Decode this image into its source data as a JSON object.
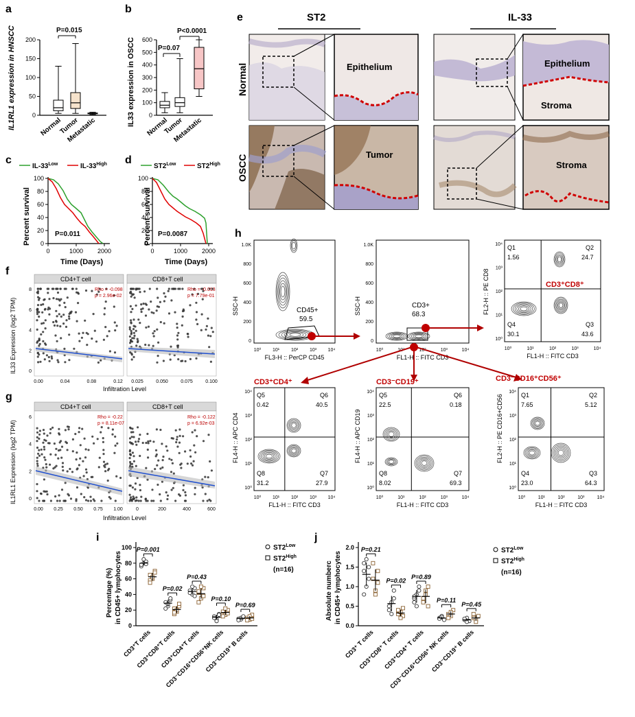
{
  "panels": {
    "a": {
      "letter": "a",
      "ylabel": "IL1RL1 expression in HNSCC",
      "pval": "P=0.015",
      "yticks": [
        "0",
        "50",
        "100",
        "150",
        "200"
      ],
      "ylim": [
        0,
        200
      ],
      "groups": [
        {
          "name": "Normal",
          "min": 5,
          "q1": 12,
          "med": 20,
          "q3": 40,
          "max": 130
        },
        {
          "name": "Tumor",
          "min": 5,
          "q1": 18,
          "med": 33,
          "q3": 60,
          "max": 190
        },
        {
          "name": "Metastatic",
          "min": 2,
          "q1": 4,
          "med": 5,
          "q3": 6,
          "max": 8
        }
      ]
    },
    "b": {
      "letter": "b",
      "ylabel": "IL33 expression in OSCC",
      "pval1": "P=0.07",
      "pval2": "P<0.0001",
      "yticks": [
        "0",
        "100",
        "200",
        "300",
        "400",
        "500",
        "600"
      ],
      "ylim": [
        0,
        600
      ],
      "groups": [
        {
          "name": "Normal",
          "min": 20,
          "q1": 60,
          "med": 80,
          "q3": 110,
          "max": 180
        },
        {
          "name": "Tumor",
          "min": 20,
          "q1": 70,
          "med": 100,
          "q3": 140,
          "max": 450
        },
        {
          "name": "Metastatic",
          "min": 150,
          "q1": 210,
          "med": 370,
          "q3": 540,
          "max": 600
        }
      ]
    },
    "c": {
      "letter": "c",
      "legend_low": "IL-33",
      "legend_low_sup": "Low",
      "legend_high": "IL-33",
      "legend_high_sup": "High",
      "ylabel": "Percent survival",
      "xlabel": "Time (Days)",
      "pval": "P=0.011",
      "yticks": [
        "0",
        "20",
        "40",
        "60",
        "80",
        "100"
      ],
      "xticks": [
        "0",
        "1000",
        "2000"
      ]
    },
    "d": {
      "letter": "d",
      "legend_low": "ST2",
      "legend_low_sup": "Low",
      "legend_high": "ST2",
      "legend_high_sup": "High",
      "ylabel": "Percent survival",
      "xlabel": "Time (Days)",
      "pval": "P=0.0087",
      "yticks": [
        "0",
        "20",
        "40",
        "60",
        "80",
        "100"
      ],
      "xticks": [
        "0",
        "1000",
        "2000"
      ]
    },
    "e": {
      "letter": "e",
      "col1": "ST2",
      "col2": "IL-33",
      "row1": "Normal",
      "row2": "OSCC",
      "labels": {
        "epi1": "Epithelium",
        "epi2": "Epithelium",
        "stroma1": "Stroma",
        "tumor": "Tumor",
        "stroma2": "Stroma"
      }
    },
    "f": {
      "letter": "f",
      "ylabel": "IL33 Expression (log2 TPM)",
      "xlabel": "Infiltration Level",
      "sub1": "CD4+T cell",
      "sub2": "CD8+T cell",
      "stat1": [
        "Rho = -0.098",
        "p = 2.96e-02"
      ],
      "stat2": [
        "Rho = -0.013",
        "p = 7.79e-01"
      ],
      "yticks": [
        "0",
        "2",
        "4",
        "6",
        "8"
      ],
      "xticks1": [
        "0.00",
        "0.04",
        "0.08",
        "0.12"
      ],
      "xticks2": [
        "0.025",
        "0.050",
        "0.075",
        "0.100"
      ]
    },
    "g": {
      "letter": "g",
      "ylabel": "IL1RL1 Expression (log2 TPM)",
      "xlabel": "Infiltration Level",
      "sub1": "CD4+T cell",
      "sub2": "CD8+T cell",
      "stat1": [
        "Rho = -0.22",
        "p = 8.11e-07"
      ],
      "stat2": [
        "Rho = -0.122",
        "p = 6.92e-03"
      ],
      "yticks": [
        "0",
        "2",
        "4",
        "6"
      ],
      "xticks1": [
        "0.00",
        "0.25",
        "0.50",
        "0.75",
        "1.00"
      ],
      "xticks2": [
        "0",
        "200",
        "400",
        "600"
      ]
    },
    "h": {
      "letter": "h",
      "plots": [
        {
          "id": "h1",
          "yl": "SSC-H",
          "xl": "FL3-H :: PerCP CD45",
          "gate": "CD45+",
          "gateval": "59.5",
          "yt": [
            "0",
            "200",
            "400",
            "600",
            "800",
            "1.0K"
          ]
        },
        {
          "id": "h2",
          "yl": "SSC-H",
          "xl": "FL1-H :: FITC CD3",
          "gate": "CD3+",
          "gateval": "68.3",
          "yt": [
            "0",
            "200",
            "400",
            "600",
            "800",
            "1.0K"
          ]
        },
        {
          "id": "h3",
          "yl": "FL2-H :: PE CD8",
          "xl": "FL1-H :: FITC CD3",
          "title": "CD3⁺CD8⁺",
          "q": [
            "Q1",
            "1.56",
            "Q2",
            "24.7",
            "Q4",
            "30.1",
            "Q3",
            "43.6"
          ]
        },
        {
          "id": "h4",
          "yl": "FL4-H :: APC CD4",
          "xl": "FL1-H :: FITC CD3",
          "title": "CD3⁺CD4⁺",
          "q": [
            "Q5",
            "0.42",
            "Q6",
            "40.5",
            "Q8",
            "31.2",
            "Q7",
            "27.9"
          ]
        },
        {
          "id": "h5",
          "yl": "FL4-H :: APC CD19",
          "xl": "FL1-H :: FITC CD3",
          "title": "CD3⁻CD19⁺",
          "q": [
            "Q5",
            "22.5",
            "Q6",
            "0.18",
            "Q8",
            "8.02",
            "Q7",
            "69.3"
          ]
        },
        {
          "id": "h6",
          "yl": "FL2-H :: PE CD16+CD56",
          "xl": "FL1-H :: FITC CD3",
          "title": "CD3⁻CD16⁺CD56⁺",
          "q": [
            "Q1",
            "7.65",
            "Q2",
            "5.12",
            "Q4",
            "23.0",
            "Q3",
            "64.3"
          ]
        }
      ],
      "logticks": [
        "10⁰",
        "10¹",
        "10²",
        "10³",
        "10⁴"
      ]
    },
    "i": {
      "letter": "i",
      "ylabel1": "Percentage (%)",
      "ylabel2": "in CD45+ lymphocytes",
      "legend_low": "ST2",
      "legend_low_sup": "Low",
      "legend_high": "ST2",
      "legend_high_sup": "High",
      "n": "(n=16)",
      "yticks": [
        "0",
        "20",
        "40",
        "60",
        "80",
        "100"
      ],
      "ylim": [
        0,
        100
      ],
      "pvals": [
        "P=0.001",
        "P=0.02",
        "P=0.43",
        "P=0.10",
        "P=0.69"
      ],
      "cats": [
        "CD3⁺T cells",
        "CD3⁺CD8⁺T cells",
        "CD3⁺CD4⁺T cells",
        "CD3⁻CD16⁺CD56⁺NK cells",
        "CD3⁻CD19⁺ B cells"
      ],
      "low": [
        [
          76,
          80,
          82,
          78,
          85,
          79
        ],
        [
          30,
          25,
          33,
          22,
          28,
          35
        ],
        [
          45,
          40,
          48,
          42,
          50,
          38
        ],
        [
          12,
          8,
          15,
          10,
          6,
          14
        ],
        [
          9,
          8,
          11,
          7,
          10,
          12
        ]
      ],
      "high": [
        [
          65,
          60,
          70,
          58,
          62,
          68,
          55
        ],
        [
          22,
          18,
          25,
          15,
          20,
          28,
          17
        ],
        [
          42,
          35,
          48,
          30,
          50,
          38,
          44
        ],
        [
          18,
          14,
          20,
          12,
          22,
          16
        ],
        [
          10,
          8,
          14,
          7,
          12,
          9
        ]
      ]
    },
    "j": {
      "letter": "j",
      "ylabel1": "Absolute numberc",
      "ylabel2": "in CD45+ lymphocytes",
      "legend_low": "ST2",
      "legend_low_sup": "Low",
      "legend_high": "ST2",
      "legend_high_sup": "High",
      "n": "(n=16)",
      "yticks": [
        "0.0",
        "0.5",
        "1.0",
        "1.5",
        "2.0"
      ],
      "ylim": [
        0,
        2.0
      ],
      "pvals": [
        "P=0.21",
        "P=0.02",
        "P=0.89",
        "P=0.11",
        "P=0.45"
      ],
      "cats": [
        "CD3⁺ T cells",
        "CD3⁺CD8⁺ T cells",
        "CD3⁺CD4⁺ T cells",
        "CD3⁻CD16⁺CD56⁺ NK cells",
        "CD3⁻CD19⁺ B cells"
      ],
      "low": [
        [
          1.4,
          1.7,
          1.2,
          1.6,
          1.0,
          1.5,
          0.8
        ],
        [
          0.5,
          0.6,
          0.9,
          0.4,
          0.3,
          0.7
        ],
        [
          0.7,
          0.8,
          0.9,
          0.6,
          0.5,
          1.0,
          0.75
        ],
        [
          0.2,
          0.25,
          0.15,
          0.18,
          0.22
        ],
        [
          0.15,
          0.2,
          0.12,
          0.18,
          0.1
        ]
      ],
      "high": [
        [
          1.2,
          0.9,
          1.4,
          1.6,
          0.8,
          1.1
        ],
        [
          0.3,
          0.35,
          0.25,
          0.4,
          0.2,
          0.45
        ],
        [
          0.7,
          0.9,
          1.0,
          0.6,
          0.8,
          0.5
        ],
        [
          0.3,
          0.25,
          0.4,
          0.2,
          0.35
        ],
        [
          0.2,
          0.15,
          0.25,
          0.3,
          0.1
        ]
      ]
    }
  }
}
